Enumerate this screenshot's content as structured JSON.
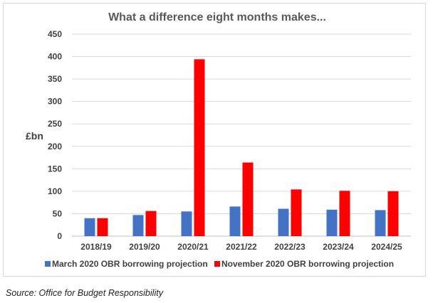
{
  "chart_data": {
    "type": "bar",
    "title": "What a difference eight months makes...",
    "xlabel": "",
    "ylabel": "£bn",
    "ylim": [
      0,
      450
    ],
    "yticks": [
      0,
      50,
      100,
      150,
      200,
      250,
      300,
      350,
      400,
      450
    ],
    "grid": true,
    "legend_position": "bottom",
    "categories": [
      "2018/19",
      "2019/20",
      "2020/21",
      "2021/22",
      "2022/23",
      "2023/24",
      "2024/25"
    ],
    "series": [
      {
        "name": "March 2020 OBR borrowing projection",
        "color": "#4472c4",
        "values": [
          40,
          47,
          55,
          66,
          61,
          59,
          58
        ]
      },
      {
        "name": "November 2020 OBR borrowing projection",
        "color": "#ff0000",
        "values": [
          40,
          56,
          394,
          164,
          104,
          101,
          100
        ]
      }
    ]
  },
  "source": "Source: Office for Budget Responsibility"
}
